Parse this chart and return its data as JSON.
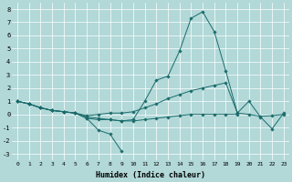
{
  "xlabel": "Humidex (Indice chaleur)",
  "xlim": [
    -0.5,
    23.5
  ],
  "ylim": [
    -3.5,
    8.5
  ],
  "xticks": [
    0,
    1,
    2,
    3,
    4,
    5,
    6,
    7,
    8,
    9,
    10,
    11,
    12,
    13,
    14,
    15,
    16,
    17,
    18,
    19,
    20,
    21,
    22,
    23
  ],
  "yticks": [
    -3,
    -2,
    -1,
    0,
    1,
    2,
    3,
    4,
    5,
    6,
    7,
    8
  ],
  "background_color": "#b2d8d8",
  "grid_color": "#ffffff",
  "line_color": "#1a6b6b",
  "lines": [
    {
      "x": [
        0,
        1,
        2,
        3,
        4,
        5,
        6,
        7,
        8,
        9
      ],
      "y": [
        1,
        0.8,
        0.5,
        0.3,
        0.2,
        0.1,
        -0.3,
        -1.2,
        -1.5,
        -2.8
      ]
    },
    {
      "x": [
        0,
        1,
        2,
        3,
        4,
        5,
        6,
        7,
        8,
        9,
        10,
        11,
        12,
        13,
        14,
        15,
        16,
        17,
        18,
        19
      ],
      "y": [
        1,
        0.8,
        0.5,
        0.3,
        0.2,
        0.1,
        -0.3,
        -0.4,
        -0.4,
        -0.5,
        -0.5,
        -0.4,
        -0.3,
        -0.2,
        -0.1,
        0.0,
        0.0,
        0.0,
        0.0,
        0.0
      ]
    },
    {
      "x": [
        0,
        1,
        2,
        3,
        4,
        5,
        6,
        7,
        8,
        9,
        10,
        11,
        12,
        13,
        14,
        15,
        16,
        17,
        18,
        19,
        20,
        21,
        22,
        23
      ],
      "y": [
        1,
        0.8,
        0.5,
        0.3,
        0.2,
        0.1,
        -0.1,
        0.0,
        0.1,
        0.1,
        0.2,
        0.5,
        0.8,
        1.2,
        1.5,
        1.8,
        2.0,
        2.2,
        2.4,
        0.1,
        0.0,
        -0.15,
        -0.1,
        0.0
      ]
    },
    {
      "x": [
        0,
        1,
        2,
        3,
        4,
        5,
        6,
        7,
        8,
        9,
        10,
        11,
        12,
        13,
        14,
        15,
        16,
        17,
        18,
        19,
        20,
        21,
        22,
        23
      ],
      "y": [
        1,
        0.8,
        0.5,
        0.3,
        0.2,
        0.1,
        -0.2,
        -0.3,
        -0.4,
        -0.5,
        -0.4,
        1.0,
        2.6,
        2.9,
        4.8,
        7.3,
        7.8,
        6.3,
        3.3,
        0.1,
        1.0,
        -0.2,
        -1.1,
        0.1
      ]
    }
  ]
}
